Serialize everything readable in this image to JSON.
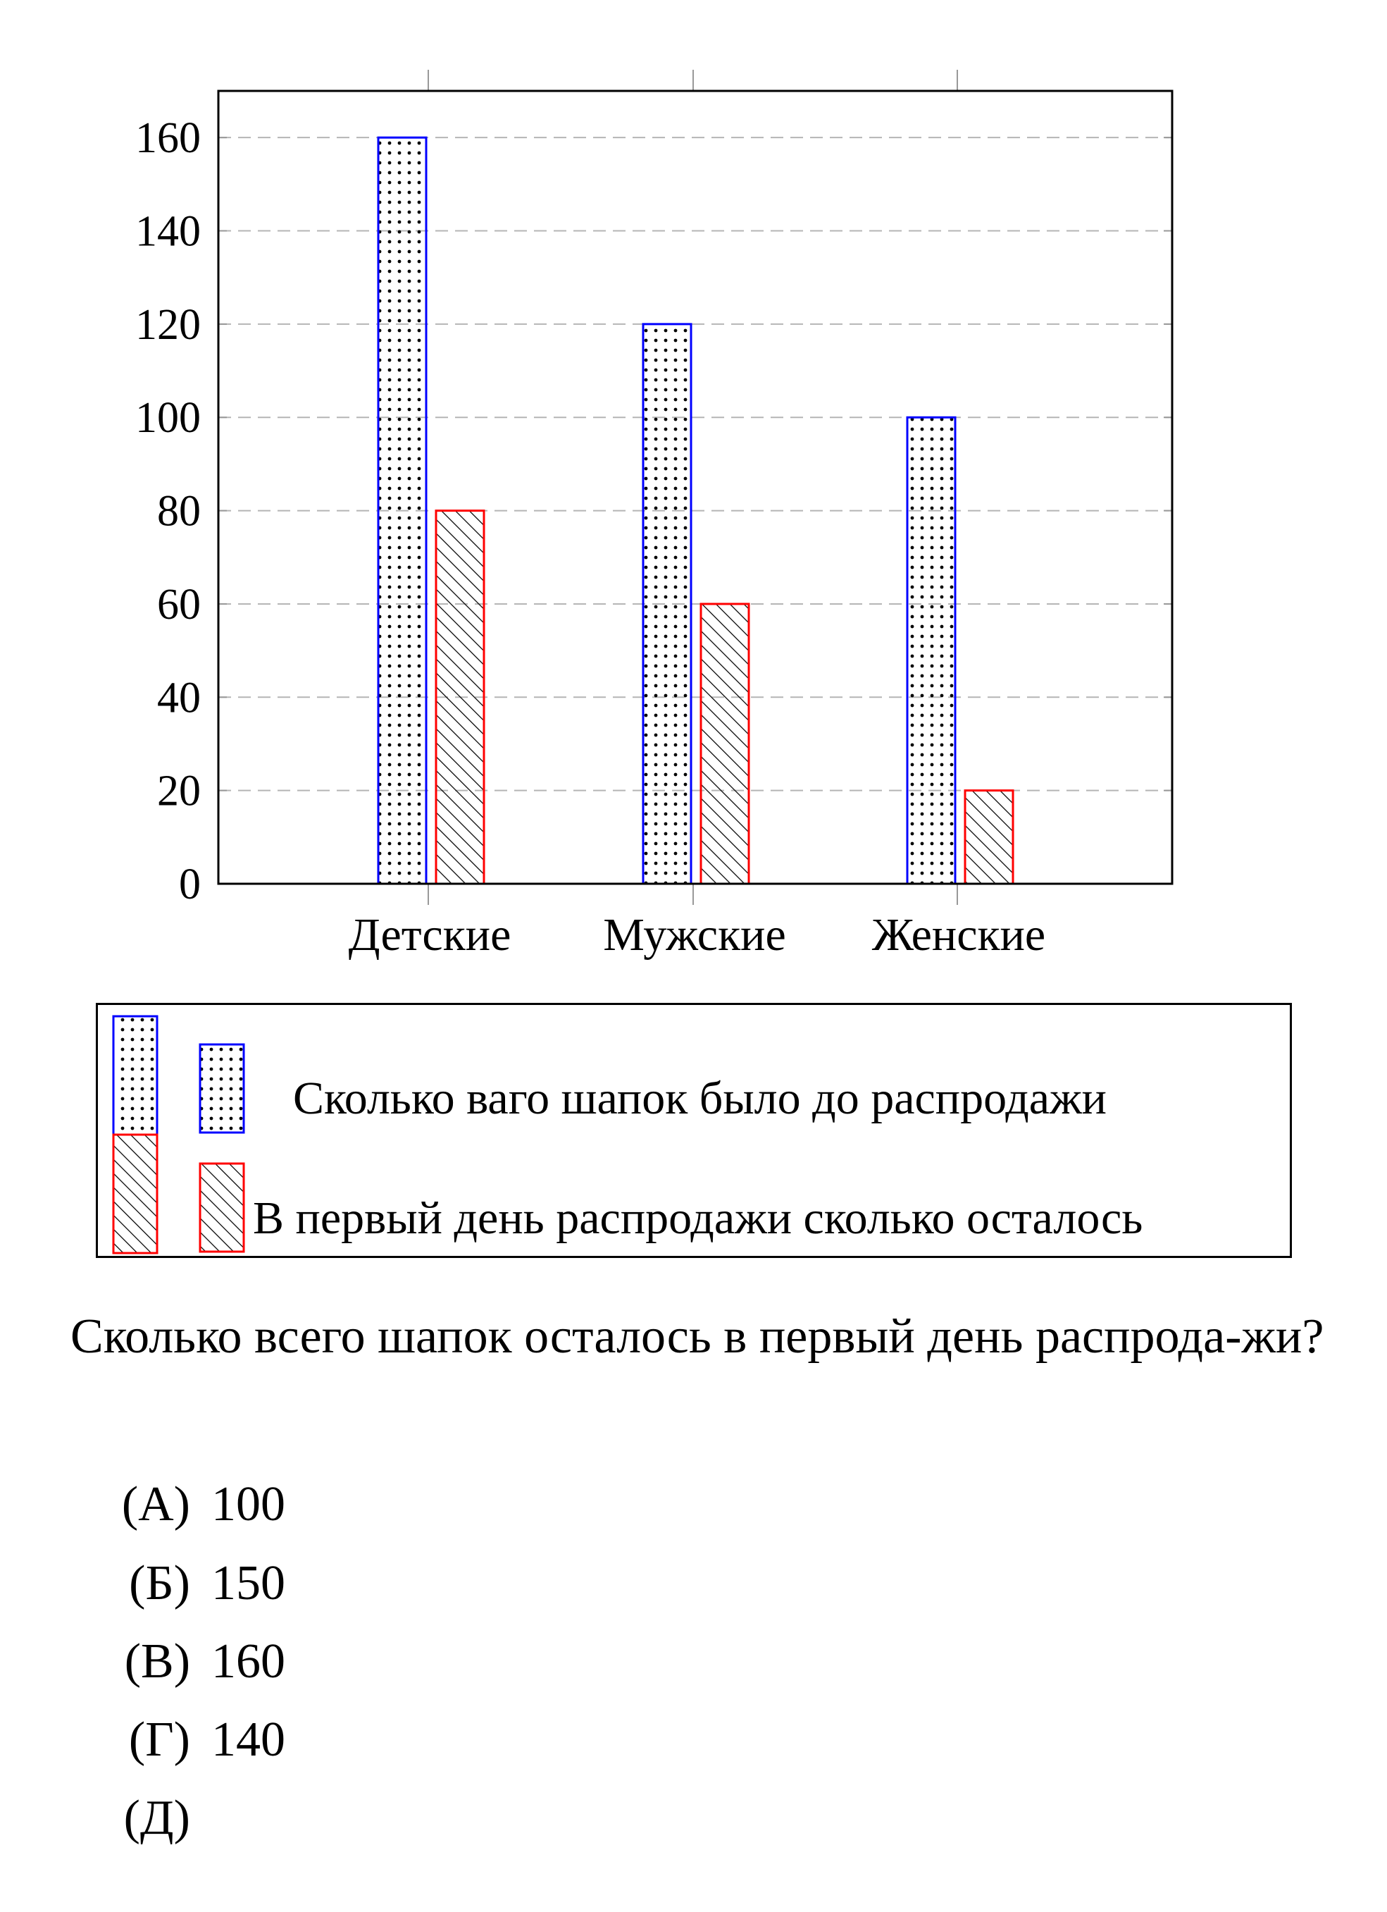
{
  "chart_data": {
    "type": "bar",
    "categories": [
      "Детские",
      "Мужские",
      "Женские"
    ],
    "series": [
      {
        "name": "Сколько ваго шапок было до распродажи",
        "values": [
          160,
          120,
          100
        ],
        "color": "#0000ff",
        "pattern": "dots"
      },
      {
        "name": "В первый день распродажи сколько осталось",
        "values": [
          80,
          60,
          20
        ],
        "color": "#ff0000",
        "pattern": "hatch"
      }
    ],
    "yticks": [
      0,
      20,
      40,
      60,
      80,
      100,
      120,
      140,
      160
    ],
    "ylim": [
      0,
      170
    ],
    "grid": "horizontal-dashed",
    "title": "",
    "xlabel": "",
    "ylabel": ""
  },
  "legend": {
    "item1_label": "Сколько ваго шапок было до распродажи",
    "item2_label": "В первый день распродажи сколько осталось"
  },
  "question": "Сколько всего шапок осталось в первый день распрода-жи?",
  "options": [
    {
      "letter": "(А)",
      "value": "100"
    },
    {
      "letter": "(Б)",
      "value": "150"
    },
    {
      "letter": "(В)",
      "value": "160"
    },
    {
      "letter": "(Г)",
      "value": "140"
    },
    {
      "letter": "(Д)",
      "value": ""
    }
  ]
}
